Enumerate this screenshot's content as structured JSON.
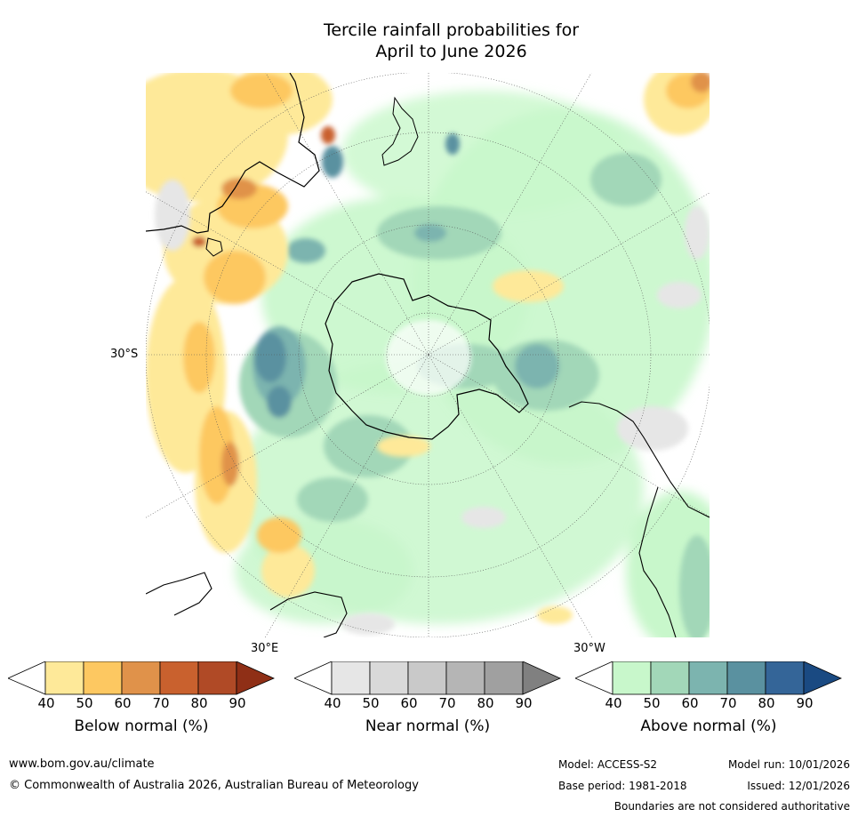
{
  "title": {
    "line1": "Tercile rainfall probabilities for",
    "line2": "April to June 2026"
  },
  "map": {
    "lat_label": "30°S",
    "lon_label_east": "30°E",
    "lon_label_west": "30°W"
  },
  "colorbars": [
    {
      "label": "Below normal (%)",
      "ticks": [
        "40",
        "50",
        "60",
        "70",
        "80",
        "90"
      ],
      "colors": [
        "#ffffff",
        "#fee999",
        "#fdc861",
        "#e0924a",
        "#c9612e",
        "#b04a26",
        "#8f2f16"
      ]
    },
    {
      "label": "Near normal (%)",
      "ticks": [
        "40",
        "50",
        "60",
        "70",
        "80",
        "90"
      ],
      "colors": [
        "#ffffff",
        "#e6e6e6",
        "#d9d9d9",
        "#c9c9c9",
        "#b5b5b5",
        "#a0a0a0",
        "#808080"
      ]
    },
    {
      "label": "Above normal (%)",
      "ticks": [
        "40",
        "50",
        "60",
        "70",
        "80",
        "90"
      ],
      "colors": [
        "#ffffff",
        "#c8f7cb",
        "#a2d7b8",
        "#7cb4af",
        "#5a91a0",
        "#346598",
        "#1a4a82"
      ]
    }
  ],
  "footer": {
    "url": "www.bom.gov.au/climate",
    "copyright": "© Commonwealth of Australia 2026, Australian Bureau of Meteorology",
    "model": "Model: ACCESS-S2",
    "model_run": "Model run: 10/01/2026",
    "base_period": "Base period: 1981-2018",
    "issued": "Issued: 12/01/2026",
    "disclaimer": "Boundaries are not considered authoritative"
  }
}
